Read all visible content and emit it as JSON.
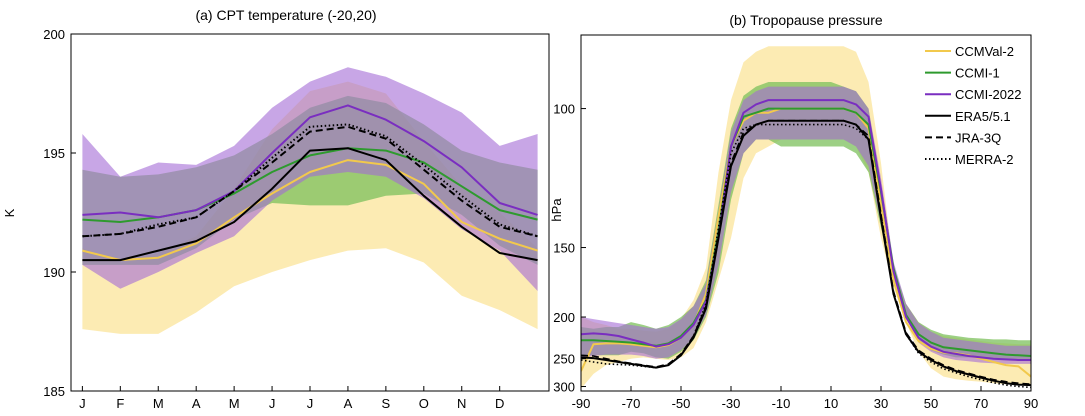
{
  "colors": {
    "ccmval2": "#f2c94c",
    "ccmval2_band": "#fbe6a0",
    "ccmi1": "#2e9a2e",
    "ccmi1_band": "#7cc05c",
    "ccmi2022": "#7a2ec0",
    "ccmi2022_band": "#a36ad6",
    "obs": "#000000"
  },
  "chart_data": [
    {
      "type": "line",
      "title": "(a) CPT temperature (-20,20)",
      "ylabel": "K",
      "xlabel": "",
      "categories": [
        "J",
        "F",
        "M",
        "A",
        "M",
        "J",
        "J",
        "A",
        "S",
        "O",
        "N",
        "D"
      ],
      "x": [
        0,
        1,
        2,
        3,
        4,
        5,
        6,
        7,
        8,
        9,
        10,
        11,
        12
      ],
      "xlim": [
        -0.3,
        12.3
      ],
      "ylim": [
        185,
        200
      ],
      "yticks": [
        185,
        190,
        195,
        200
      ],
      "bands": [
        {
          "name": "CCMVal-2",
          "color_key": "ccmval2_band",
          "opacity": 0.8,
          "lower": [
            187.6,
            187.4,
            187.4,
            188.3,
            189.4,
            190.0,
            190.5,
            190.9,
            191.0,
            190.4,
            189.0,
            188.4,
            187.6
          ],
          "upper": [
            191.0,
            190.4,
            190.8,
            191.5,
            193.5,
            196.0,
            197.6,
            198.0,
            197.5,
            195.5,
            193.6,
            192.5,
            191.0
          ]
        },
        {
          "name": "CCMI-1",
          "color_key": "ccmi1_band",
          "opacity": 0.75,
          "lower": [
            190.3,
            190.3,
            190.3,
            191.0,
            192.2,
            192.9,
            192.8,
            192.8,
            193.2,
            193.3,
            192.4,
            191.1,
            190.3
          ],
          "upper": [
            194.3,
            194.0,
            194.1,
            194.4,
            194.9,
            195.8,
            196.9,
            197.4,
            197.1,
            196.2,
            195.1,
            194.6,
            194.3
          ]
        },
        {
          "name": "CCMI-2022",
          "color_key": "ccmi2022_band",
          "opacity": 0.6,
          "lower": [
            190.3,
            189.3,
            190.0,
            190.8,
            191.5,
            193.0,
            194.0,
            194.2,
            194.0,
            193.1,
            191.8,
            190.9,
            189.2
          ],
          "upper": [
            195.8,
            194.0,
            194.6,
            194.5,
            195.3,
            196.9,
            198.0,
            198.6,
            198.2,
            197.5,
            196.7,
            195.3,
            195.8
          ]
        }
      ],
      "series": [
        {
          "name": "CCMVal-2",
          "color_key": "ccmval2",
          "dash": "",
          "width": 2,
          "values": [
            190.9,
            190.5,
            190.6,
            191.2,
            192.3,
            193.3,
            194.2,
            194.7,
            194.5,
            193.7,
            192.1,
            191.4,
            190.9
          ]
        },
        {
          "name": "CCMI-1",
          "color_key": "ccmi1",
          "dash": "",
          "width": 2,
          "values": [
            192.2,
            192.1,
            192.3,
            192.6,
            193.3,
            194.2,
            194.9,
            195.2,
            195.1,
            194.6,
            193.6,
            192.6,
            192.2
          ]
        },
        {
          "name": "CCMI-2022",
          "color_key": "ccmi2022",
          "dash": "",
          "width": 2,
          "values": [
            192.4,
            192.5,
            192.3,
            192.6,
            193.4,
            195.0,
            196.5,
            197.0,
            196.4,
            195.5,
            194.4,
            192.9,
            192.4
          ]
        },
        {
          "name": "ERA5/5.1",
          "color_key": "obs",
          "dash": "",
          "width": 2,
          "values": [
            190.5,
            190.5,
            190.9,
            191.3,
            192.1,
            193.5,
            195.1,
            195.2,
            194.7,
            193.2,
            191.9,
            190.8,
            190.5
          ]
        },
        {
          "name": "JRA-3Q",
          "color_key": "obs",
          "dash": "7,4",
          "width": 2,
          "values": [
            191.5,
            191.6,
            191.9,
            192.3,
            193.4,
            194.6,
            195.9,
            196.1,
            195.6,
            194.3,
            193.0,
            191.9,
            191.5
          ]
        },
        {
          "name": "MERRA-2",
          "color_key": "obs",
          "dash": "1.5,2.5",
          "width": 2,
          "values": [
            191.5,
            191.6,
            192.0,
            192.3,
            193.4,
            194.8,
            196.1,
            196.2,
            195.7,
            194.5,
            193.2,
            192.0,
            191.5
          ]
        }
      ]
    },
    {
      "type": "line",
      "title": "(b) Tropopause pressure",
      "ylabel": "hPa",
      "xlabel": "",
      "x": [
        -90,
        -85,
        -80,
        -75,
        -70,
        -65,
        -60,
        -55,
        -50,
        -45,
        -40,
        -35,
        -30,
        -25,
        -20,
        -15,
        -10,
        -5,
        0,
        5,
        10,
        15,
        20,
        25,
        30,
        35,
        40,
        45,
        50,
        55,
        60,
        65,
        70,
        75,
        80,
        85,
        90
      ],
      "xlim": [
        -90,
        90
      ],
      "xticks": [
        -90,
        -70,
        -50,
        -30,
        -10,
        10,
        30,
        50,
        70,
        90
      ],
      "ylim": [
        85,
        310
      ],
      "yscale": "reciprocal",
      "yticks": [
        100,
        150,
        200,
        250,
        300
      ],
      "bands": [
        {
          "name": "CCMVal-2",
          "color_key": "ccmval2_band",
          "opacity": 0.8,
          "lower": [
            200,
            205,
            208,
            212,
            212,
            214,
            215,
            212,
            202,
            185,
            162,
            118,
            98,
            90,
            88,
            87,
            87,
            87,
            87,
            87,
            87,
            87,
            88,
            94,
            115,
            162,
            188,
            205,
            215,
            220,
            222,
            224,
            226,
            228,
            229,
            230,
            230
          ],
          "upper": [
            305,
            275,
            260,
            255,
            250,
            248,
            250,
            252,
            248,
            235,
            205,
            170,
            145,
            120,
            112,
            110,
            108,
            108,
            108,
            108,
            108,
            108,
            110,
            118,
            145,
            175,
            205,
            240,
            265,
            280,
            285,
            288,
            290,
            293,
            295,
            295,
            295
          ]
        },
        {
          "name": "CCMI-1",
          "color_key": "ccmi1_band",
          "opacity": 0.75,
          "lower": [
            210,
            212,
            210,
            210,
            205,
            208,
            212,
            208,
            200,
            190,
            170,
            130,
            105,
            97,
            95,
            94,
            94,
            94,
            94,
            94,
            94,
            95,
            96,
            100,
            122,
            160,
            188,
            205,
            213,
            218,
            220,
            222,
            223,
            224,
            224,
            225,
            225
          ],
          "upper": [
            245,
            245,
            245,
            245,
            240,
            242,
            248,
            250,
            240,
            225,
            200,
            165,
            128,
            112,
            108,
            108,
            110,
            110,
            110,
            110,
            110,
            110,
            112,
            118,
            140,
            168,
            200,
            225,
            238,
            244,
            248,
            248,
            248,
            250,
            252,
            252,
            252
          ]
        },
        {
          "name": "CCMI-2022",
          "color_key": "ccmi2022_band",
          "opacity": 0.6,
          "lower": [
            200,
            202,
            204,
            206,
            208,
            210,
            212,
            210,
            202,
            190,
            172,
            132,
            106,
            98,
            96,
            95,
            95,
            95,
            95,
            95,
            95,
            95,
            96,
            100,
            120,
            158,
            188,
            206,
            215,
            222,
            224,
            226,
            228,
            230,
            232,
            232,
            232
          ],
          "upper": [
            248,
            246,
            244,
            244,
            244,
            246,
            250,
            248,
            238,
            222,
            198,
            160,
            125,
            112,
            108,
            108,
            108,
            108,
            108,
            108,
            108,
            108,
            110,
            116,
            138,
            168,
            200,
            228,
            240,
            248,
            252,
            254,
            256,
            257,
            258,
            258,
            258
          ]
        }
      ],
      "series": [
        {
          "name": "CCMVal-2",
          "color_key": "ccmval2",
          "dash": "",
          "width": 2,
          "values": [
            270,
            230,
            229,
            229,
            230,
            232,
            234,
            231,
            222,
            208,
            180,
            135,
            110,
            103,
            101,
            101,
            100,
            100,
            100,
            100,
            100,
            100,
            101,
            105,
            130,
            170,
            205,
            226,
            236,
            241,
            242,
            245,
            250,
            255,
            260,
            262,
            280
          ]
        },
        {
          "name": "CCMI-1",
          "color_key": "ccmi1",
          "dash": "",
          "width": 2,
          "values": [
            225,
            225,
            226,
            227,
            228,
            230,
            232,
            229,
            220,
            206,
            185,
            142,
            110,
            102,
            101,
            100,
            100,
            100,
            100,
            100,
            100,
            100,
            101,
            104,
            125,
            162,
            198,
            218,
            228,
            234,
            236,
            238,
            240,
            242,
            244,
            245,
            246
          ]
        },
        {
          "name": "CCMI-2022",
          "color_key": "ccmi2022",
          "dash": "",
          "width": 2,
          "values": [
            218,
            217,
            218,
            220,
            224,
            228,
            233,
            230,
            222,
            208,
            186,
            145,
            110,
            101,
            99,
            98,
            98,
            98,
            98,
            98,
            98,
            98,
            99,
            102,
            124,
            164,
            200,
            222,
            233,
            240,
            243,
            246,
            248,
            250,
            251,
            252,
            252
          ]
        },
        {
          "name": "ERA5/5.1",
          "color_key": "obs",
          "dash": "",
          "width": 2,
          "values": [
            248,
            249,
            252,
            255,
            258,
            261,
            264,
            260,
            245,
            222,
            192,
            145,
            116,
            107,
            104,
            103,
            103,
            103,
            103,
            103,
            103,
            103,
            104,
            108,
            136,
            180,
            218,
            240,
            252,
            262,
            270,
            276,
            282,
            288,
            293,
            296,
            297
          ]
        },
        {
          "name": "JRA-3Q",
          "color_key": "obs",
          "dash": "7,4",
          "width": 1.6,
          "values": [
            245,
            246,
            250,
            254,
            257,
            260,
            263,
            258,
            243,
            220,
            190,
            143,
            115,
            106,
            104,
            103,
            103,
            103,
            103,
            103,
            103,
            103,
            104,
            107,
            134,
            178,
            216,
            238,
            250,
            260,
            268,
            274,
            280,
            286,
            290,
            293,
            295
          ]
        },
        {
          "name": "MERRA-2",
          "color_key": "obs",
          "dash": "1.5,2.5",
          "width": 1.6,
          "values": [
            252,
            255,
            258,
            259,
            260,
            262,
            264,
            260,
            244,
            220,
            188,
            140,
            112,
            105,
            104,
            104,
            104,
            104,
            104,
            104,
            104,
            104,
            105,
            108,
            134,
            180,
            218,
            242,
            255,
            266,
            273,
            280,
            286,
            292,
            297,
            300,
            302
          ]
        }
      ],
      "legend": {
        "position": "top-right",
        "entries": [
          {
            "label": "CCMVal-2",
            "color_key": "ccmval2",
            "dash": ""
          },
          {
            "label": "CCMI-1",
            "color_key": "ccmi1",
            "dash": ""
          },
          {
            "label": "CCMI-2022",
            "color_key": "ccmi2022",
            "dash": ""
          },
          {
            "label": "ERA5/5.1",
            "color_key": "obs",
            "dash": ""
          },
          {
            "label": "JRA-3Q",
            "color_key": "obs",
            "dash": "7,4"
          },
          {
            "label": "MERRA-2",
            "color_key": "obs",
            "dash": "1.5,2.5"
          }
        ]
      }
    }
  ]
}
